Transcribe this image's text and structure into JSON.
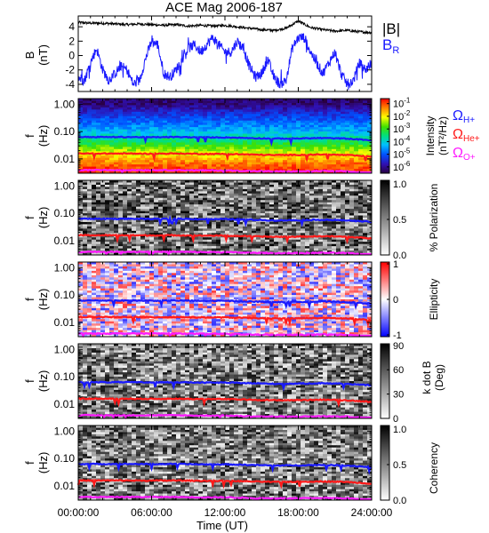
{
  "title": "ACE Mag 2006-187",
  "colors": {
    "B_total": "#000000",
    "B_R": "#1a1aff",
    "O_H": "#1a1aff",
    "O_He": "#ff1a1a",
    "O_O": "#ff1aff",
    "frame": "#000000"
  },
  "time_axis": {
    "label": "Time (UT)",
    "range_hours": [
      0,
      24
    ],
    "ticks": [
      "00:00:00",
      "06:00:00",
      "12:00:00",
      "18:00:00",
      "24:00:00"
    ]
  },
  "freq_axis": {
    "label_top": "f",
    "label_bottom": "(Hz)",
    "ticks": [
      "1.00",
      "0.10",
      "0.01"
    ],
    "scale": "log"
  },
  "legends": {
    "B_total": "|B|",
    "B_R_main": "B",
    "B_R_sub": "R",
    "O_H_sub": "H+",
    "O_He_sub": "He+",
    "O_O_sub": "O+",
    "omega_symbol": "Ω"
  },
  "panels": [
    {
      "id": "field",
      "ylabel_top": "B",
      "ylabel_bottom": "(nT)",
      "yticks": [
        "4",
        "2",
        "0",
        "-2",
        "-4"
      ],
      "ylim": [
        -5,
        5.5
      ]
    },
    {
      "id": "intensity",
      "cb_label1": "Intensity",
      "cb_label2": "(nT²/Hz)",
      "cb_ticks_base": "10",
      "cb_ticks_exp": [
        "-1",
        "-2",
        "-3",
        "-4",
        "-5",
        "-6"
      ],
      "colormap": "rainbow",
      "log_range": [
        -6.5,
        -0.6
      ]
    },
    {
      "id": "polarization",
      "cb_label1": "% Polarization",
      "cb_ticks": [
        "1.0",
        "0.5",
        "0.0"
      ],
      "colormap": "gray"
    },
    {
      "id": "ellipticity",
      "cb_label1": "Ellipticity",
      "cb_ticks": [
        "1",
        "0",
        "-1"
      ],
      "colormap": "blue-white-red"
    },
    {
      "id": "kdotb",
      "cb_label1": "k dot B",
      "cb_label2": "(Deg)",
      "cb_ticks": [
        "90",
        "60",
        "30",
        "0"
      ],
      "colormap": "gray"
    },
    {
      "id": "coherency",
      "cb_label1": "Coherency",
      "cb_ticks": [
        "1.0",
        "0.5",
        "0.0"
      ],
      "colormap": "gray"
    }
  ],
  "chart_data": {
    "type": "heatmap",
    "title": "ACE Mag 2006-187",
    "xlabel": "Time (UT)",
    "x_unit": "hours UT",
    "xlim": [
      0,
      24
    ],
    "series_timeseries": [
      {
        "name": "|B|",
        "panel": "field",
        "x": [
          0,
          1,
          2,
          3,
          4,
          5,
          6,
          7,
          8,
          9,
          10,
          11,
          12,
          13,
          14,
          15,
          16,
          17,
          18,
          19,
          20,
          21,
          22,
          23,
          24
        ],
        "y": [
          4.6,
          4.5,
          4.5,
          4.4,
          4.3,
          4.4,
          4.3,
          4.2,
          4.3,
          4.1,
          4.2,
          4.1,
          4.2,
          4.0,
          3.8,
          3.6,
          3.5,
          3.8,
          4.8,
          3.9,
          3.6,
          3.4,
          3.5,
          3.3,
          3.2
        ]
      },
      {
        "name": "B_R",
        "panel": "field",
        "x": [
          0,
          0.5,
          1,
          1.5,
          2,
          2.5,
          3,
          3.5,
          4,
          4.5,
          5,
          5.5,
          6,
          6.5,
          7,
          7.5,
          8,
          8.5,
          9,
          9.5,
          10,
          10.5,
          11,
          11.5,
          12,
          12.5,
          13,
          13.5,
          14,
          14.5,
          15,
          15.5,
          16,
          16.5,
          17,
          17.5,
          18,
          18.5,
          19,
          19.5,
          20,
          20.5,
          21,
          21.5,
          22,
          22.5,
          23,
          23.5,
          24
        ],
        "y": [
          -3,
          -3.5,
          -1,
          1,
          -2,
          -3.5,
          -2.5,
          -1.5,
          -2,
          -4,
          -3.5,
          -0.5,
          2,
          1.5,
          -2.5,
          -3,
          -2,
          -0.5,
          1,
          1.5,
          0.5,
          1.5,
          2.5,
          1.5,
          0.5,
          0.5,
          2,
          1,
          -1.5,
          -3,
          -2.5,
          -0.5,
          -3,
          -4,
          -3.5,
          1,
          2.5,
          2.5,
          0.5,
          -1,
          -2.5,
          -1,
          0.5,
          -2.5,
          -4,
          -3.5,
          -1,
          -2,
          -1
        ]
      }
    ],
    "frequency_lines_hz": [
      {
        "name": "Ω H+",
        "panels": [
          "intensity",
          "polarization",
          "ellipticity",
          "kdotb",
          "coherency"
        ],
        "x": [
          0,
          2,
          4,
          6,
          8,
          10,
          12,
          14,
          16,
          18,
          20,
          22,
          24
        ],
        "y": [
          0.063,
          0.063,
          0.063,
          0.062,
          0.063,
          0.061,
          0.061,
          0.058,
          0.055,
          0.056,
          0.058,
          0.055,
          0.048
        ]
      },
      {
        "name": "Ω He+",
        "panels": [
          "intensity",
          "polarization",
          "ellipticity",
          "kdotb",
          "coherency"
        ],
        "x": [
          0,
          2,
          4,
          6,
          8,
          10,
          12,
          14,
          16,
          18,
          20,
          22,
          24
        ],
        "y": [
          0.0157,
          0.0157,
          0.0157,
          0.0155,
          0.0157,
          0.0153,
          0.0152,
          0.0145,
          0.0138,
          0.014,
          0.0145,
          0.0138,
          0.012
        ]
      },
      {
        "name": "Ω O+",
        "panels": [
          "intensity",
          "polarization",
          "ellipticity",
          "kdotb",
          "coherency"
        ],
        "x": [
          0,
          2,
          4,
          6,
          8,
          10,
          12,
          14,
          16,
          18,
          20,
          22,
          24
        ],
        "y": [
          0.0039,
          0.0039,
          0.0039,
          0.0039,
          0.0039,
          0.0038,
          0.0038,
          0.0036,
          0.0035,
          0.0035,
          0.0036,
          0.0035,
          0.003
        ]
      }
    ],
    "freq_range_hz": [
      0.003,
      1.6
    ],
    "intensity_profile": {
      "description_units": "log10 nT²/Hz vs frequency (Hz)",
      "f": [
        1.0,
        0.5,
        0.2,
        0.1,
        0.05,
        0.02,
        0.01,
        0.005,
        0.003
      ],
      "log_intensity": [
        -6.2,
        -5.5,
        -4.8,
        -4.3,
        -3.6,
        -2.4,
        -1.6,
        -1.0,
        -0.8
      ]
    }
  }
}
